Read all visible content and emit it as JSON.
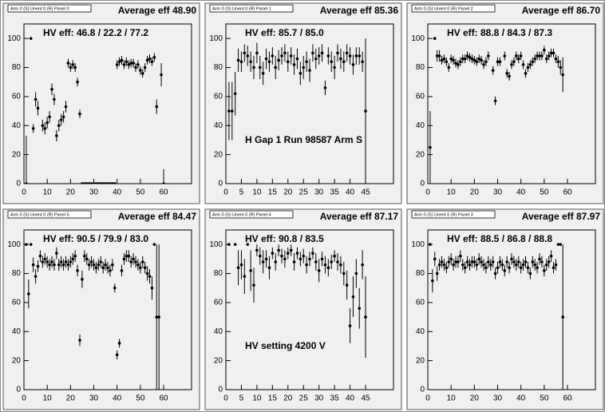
{
  "chart_data": [
    {
      "type": "scatter",
      "title": "Arm 0 (S) Unent 0 (R) Panel 0",
      "average_eff": "Average eff 48.90",
      "hv_eff": "HV eff:   46.8 / 22.2 / 77.2",
      "x": [
        1,
        2,
        3,
        4,
        5,
        6,
        7,
        8,
        9,
        10,
        11,
        12,
        13,
        14,
        15,
        16,
        17,
        18,
        19,
        20,
        21,
        22,
        23,
        24,
        25,
        26,
        27,
        28,
        29,
        30,
        31,
        32,
        33,
        34,
        35,
        36,
        37,
        38,
        39,
        40,
        41,
        42,
        43,
        44,
        45,
        46,
        47,
        48,
        49,
        50,
        51,
        52,
        53,
        54,
        55,
        56,
        57,
        58,
        59,
        60
      ],
      "values": [
        0,
        null,
        100,
        38,
        58,
        52,
        null,
        40,
        38,
        42,
        46,
        65,
        58,
        33,
        40,
        44,
        46,
        53,
        83,
        80,
        82,
        80,
        70,
        48,
        0,
        0,
        0,
        0,
        0,
        0,
        0,
        0,
        0,
        0,
        0,
        0,
        0,
        0,
        0,
        82,
        84,
        85,
        82,
        84,
        82,
        83,
        83,
        80,
        82,
        78,
        76,
        80,
        85,
        86,
        84,
        87,
        53,
        null,
        75,
        0
      ],
      "errors": [
        33,
        null,
        1,
        3,
        5,
        5,
        null,
        4,
        4,
        4,
        4,
        4,
        4,
        4,
        4,
        4,
        4,
        4,
        3,
        3,
        3,
        3,
        3,
        3,
        1,
        1,
        1,
        1,
        1,
        1,
        1,
        1,
        1,
        1,
        1,
        1,
        1,
        1,
        1,
        3,
        3,
        3,
        3,
        3,
        3,
        3,
        3,
        3,
        3,
        3,
        3,
        3,
        3,
        3,
        3,
        3,
        5,
        null,
        8,
        10
      ],
      "xlim": [
        0,
        72
      ],
      "ylim": [
        0,
        110
      ],
      "xticks": [
        0,
        10,
        20,
        30,
        40,
        50,
        60
      ],
      "yticks": [
        0,
        20,
        40,
        60,
        80,
        100
      ],
      "color": "#000000"
    },
    {
      "type": "scatter",
      "title": "Arm 0 (S) Unent 0 (R) Panel 1",
      "average_eff": "Average eff 85.36",
      "hv_eff": "HV eff:   85.7 / 85.0",
      "annotation": "H Gap 1 Run 98587 Arm S",
      "x": [
        1,
        2,
        3,
        4,
        5,
        6,
        7,
        8,
        9,
        10,
        11,
        12,
        13,
        14,
        15,
        16,
        17,
        18,
        19,
        20,
        21,
        22,
        23,
        24,
        25,
        26,
        27,
        28,
        29,
        30,
        31,
        32,
        33,
        34,
        35,
        36,
        37,
        38,
        39,
        40,
        41,
        42,
        43,
        44,
        45
      ],
      "values": [
        50,
        50,
        62,
        85,
        84,
        90,
        88,
        84,
        80,
        90,
        80,
        76,
        86,
        84,
        88,
        80,
        85,
        88,
        90,
        84,
        88,
        82,
        86,
        76,
        80,
        84,
        78,
        90,
        86,
        88,
        90,
        66,
        88,
        84,
        80,
        90,
        86,
        84,
        90,
        88,
        82,
        88,
        88,
        84,
        50
      ],
      "errors": [
        20,
        20,
        15,
        8,
        7,
        6,
        7,
        7,
        8,
        7,
        8,
        8,
        7,
        7,
        6,
        8,
        7,
        6,
        6,
        7,
        6,
        7,
        7,
        8,
        8,
        7,
        8,
        6,
        7,
        6,
        6,
        5,
        6,
        7,
        8,
        6,
        7,
        7,
        6,
        6,
        7,
        6,
        6,
        7,
        50
      ],
      "xlim": [
        0,
        54
      ],
      "ylim": [
        0,
        110
      ],
      "xticks": [
        0,
        5,
        10,
        15,
        20,
        25,
        30,
        35,
        40,
        45
      ],
      "yticks": [
        0,
        20,
        40,
        60,
        80,
        100
      ],
      "color": "#000000"
    },
    {
      "type": "scatter",
      "title": "Arm 0 (S) Unent 0 (R) Panel 2",
      "average_eff": "Average eff 86.70",
      "hv_eff": "HV eff:   88.8 / 84.3 / 87.3",
      "x": [
        1,
        2,
        3,
        4,
        5,
        6,
        7,
        8,
        9,
        10,
        11,
        12,
        13,
        14,
        15,
        16,
        17,
        18,
        19,
        20,
        21,
        22,
        23,
        24,
        25,
        26,
        27,
        28,
        29,
        30,
        31,
        32,
        33,
        34,
        35,
        36,
        37,
        38,
        39,
        40,
        41,
        42,
        43,
        44,
        45,
        46,
        47,
        48,
        49,
        50,
        51,
        52,
        53,
        54,
        55,
        56,
        57,
        58,
        59,
        60
      ],
      "values": [
        25,
        null,
        100,
        88,
        88,
        85,
        86,
        84,
        80,
        86,
        85,
        83,
        82,
        84,
        86,
        86,
        88,
        87,
        86,
        85,
        84,
        86,
        85,
        82,
        84,
        88,
        null,
        78,
        57,
        84,
        84,
        null,
        88,
        76,
        74,
        82,
        84,
        88,
        86,
        88,
        82,
        76,
        80,
        82,
        84,
        86,
        88,
        88,
        88,
        92,
        86,
        88,
        90,
        90,
        86,
        84,
        80,
        75,
        null,
        null
      ],
      "errors": [
        25,
        null,
        1,
        4,
        4,
        3,
        3,
        3,
        3,
        3,
        3,
        3,
        3,
        3,
        3,
        3,
        3,
        3,
        3,
        3,
        3,
        3,
        3,
        3,
        3,
        3,
        null,
        3,
        3,
        3,
        3,
        null,
        3,
        3,
        3,
        3,
        3,
        3,
        3,
        3,
        3,
        3,
        3,
        3,
        3,
        3,
        3,
        3,
        3,
        3,
        3,
        3,
        3,
        3,
        3,
        4,
        5,
        12,
        null,
        null
      ],
      "xlim": [
        0,
        72
      ],
      "ylim": [
        0,
        110
      ],
      "xticks": [
        0,
        10,
        20,
        30,
        40,
        50,
        60
      ],
      "yticks": [
        0,
        20,
        40,
        60,
        80,
        100
      ],
      "color": "#000000"
    },
    {
      "type": "scatter",
      "title": "Arm 0 (S) Unent 0 (R) Panel 5",
      "average_eff": "Average eff 84.47",
      "hv_eff": "HV eff:   90.5 / 79.9 / 83.0",
      "x": [
        1,
        2,
        3,
        4,
        5,
        6,
        7,
        8,
        9,
        10,
        11,
        12,
        13,
        14,
        15,
        16,
        17,
        18,
        19,
        20,
        21,
        22,
        23,
        24,
        25,
        26,
        27,
        28,
        29,
        30,
        31,
        32,
        33,
        34,
        35,
        36,
        37,
        38,
        39,
        40,
        41,
        42,
        43,
        44,
        45,
        46,
        47,
        48,
        49,
        50,
        51,
        52,
        53,
        54,
        55,
        56,
        57,
        58,
        59,
        60
      ],
      "values": [
        100,
        66,
        100,
        86,
        78,
        85,
        92,
        88,
        90,
        88,
        86,
        88,
        86,
        94,
        86,
        88,
        86,
        88,
        86,
        88,
        90,
        92,
        82,
        34,
        76,
        92,
        90,
        86,
        88,
        86,
        84,
        86,
        88,
        84,
        86,
        84,
        82,
        86,
        70,
        24,
        32,
        82,
        90,
        92,
        92,
        88,
        90,
        88,
        86,
        84,
        88,
        84,
        80,
        78,
        70,
        100,
        50,
        50,
        null,
        null
      ],
      "errors": [
        1,
        10,
        1,
        5,
        5,
        4,
        4,
        4,
        4,
        4,
        4,
        4,
        4,
        4,
        4,
        4,
        4,
        4,
        4,
        4,
        4,
        4,
        4,
        4,
        6,
        4,
        4,
        4,
        4,
        4,
        4,
        4,
        4,
        4,
        4,
        4,
        4,
        4,
        3,
        3,
        3,
        4,
        4,
        4,
        4,
        4,
        4,
        4,
        4,
        4,
        4,
        4,
        5,
        5,
        8,
        1,
        50,
        50,
        null,
        null
      ],
      "xlim": [
        0,
        72
      ],
      "ylim": [
        0,
        110
      ],
      "xticks": [
        0,
        10,
        20,
        30,
        40,
        50,
        60
      ],
      "yticks": [
        0,
        20,
        40,
        60,
        80,
        100
      ],
      "color": "#000000"
    },
    {
      "type": "scatter",
      "title": "Arm 0 (S) Unent 0 (R) Panel 4",
      "average_eff": "Average eff 87.17",
      "hv_eff": "HV eff:   90.8 / 83.5",
      "annotation": "HV setting 4200 V",
      "x": [
        1,
        2,
        3,
        4,
        5,
        6,
        7,
        8,
        9,
        10,
        11,
        12,
        13,
        14,
        15,
        16,
        17,
        18,
        19,
        20,
        21,
        22,
        23,
        24,
        25,
        26,
        27,
        28,
        29,
        30,
        31,
        32,
        33,
        34,
        35,
        36,
        37,
        38,
        39,
        40,
        41,
        42,
        43,
        44,
        45
      ],
      "values": [
        100,
        null,
        100,
        84,
        86,
        78,
        100,
        82,
        72,
        96,
        92,
        88,
        90,
        84,
        94,
        88,
        96,
        92,
        90,
        94,
        96,
        88,
        94,
        90,
        92,
        86,
        90,
        94,
        88,
        82,
        90,
        86,
        84,
        88,
        92,
        88,
        86,
        80,
        72,
        44,
        64,
        80,
        56,
        86,
        50
      ],
      "errors": [
        1,
        null,
        1,
        12,
        10,
        12,
        1,
        14,
        12,
        4,
        6,
        8,
        6,
        8,
        4,
        6,
        4,
        5,
        6,
        4,
        4,
        6,
        4,
        5,
        5,
        6,
        5,
        4,
        6,
        8,
        5,
        6,
        6,
        5,
        4,
        6,
        6,
        8,
        10,
        12,
        14,
        10,
        14,
        10,
        28
      ],
      "xlim": [
        0,
        54
      ],
      "ylim": [
        0,
        110
      ],
      "xticks": [
        0,
        5,
        10,
        15,
        20,
        25,
        30,
        35,
        40,
        45
      ],
      "yticks": [
        0,
        20,
        40,
        60,
        80,
        100
      ],
      "color": "#000000"
    },
    {
      "type": "scatter",
      "title": "Arm 0 (S) Unent 0 (R) Panel 3",
      "average_eff": "Average eff 87.97",
      "hv_eff": "HV eff:   88.5 / 86.8 / 88.8",
      "x": [
        1,
        2,
        3,
        4,
        5,
        6,
        7,
        8,
        9,
        10,
        11,
        12,
        13,
        14,
        15,
        16,
        17,
        18,
        19,
        20,
        21,
        22,
        23,
        24,
        25,
        26,
        27,
        28,
        29,
        30,
        31,
        32,
        33,
        34,
        35,
        36,
        37,
        38,
        39,
        40,
        41,
        42,
        43,
        44,
        45,
        46,
        47,
        48,
        49,
        50,
        51,
        52,
        53,
        54,
        55,
        56,
        57,
        58,
        59,
        60
      ],
      "values": [
        100,
        75,
        90,
        80,
        86,
        88,
        86,
        84,
        88,
        90,
        86,
        88,
        88,
        92,
        86,
        84,
        88,
        86,
        88,
        88,
        86,
        90,
        88,
        86,
        84,
        88,
        86,
        88,
        80,
        84,
        88,
        86,
        82,
        88,
        84,
        90,
        88,
        86,
        88,
        84,
        86,
        88,
        84,
        80,
        88,
        86,
        84,
        90,
        88,
        82,
        86,
        88,
        92,
        84,
        86,
        100,
        100,
        50,
        null,
        null
      ],
      "errors": [
        1,
        8,
        5,
        5,
        4,
        4,
        4,
        4,
        4,
        4,
        4,
        4,
        4,
        4,
        4,
        4,
        4,
        4,
        4,
        4,
        4,
        4,
        4,
        4,
        4,
        4,
        4,
        4,
        4,
        4,
        4,
        4,
        4,
        4,
        4,
        4,
        4,
        4,
        4,
        4,
        4,
        4,
        4,
        4,
        4,
        4,
        4,
        4,
        4,
        4,
        4,
        4,
        4,
        4,
        4,
        1,
        1,
        50,
        null,
        null
      ],
      "xlim": [
        0,
        72
      ],
      "ylim": [
        0,
        110
      ],
      "xticks": [
        0,
        10,
        20,
        30,
        40,
        50,
        60
      ],
      "yticks": [
        0,
        20,
        40,
        60,
        80,
        100
      ],
      "color": "#000000"
    }
  ]
}
